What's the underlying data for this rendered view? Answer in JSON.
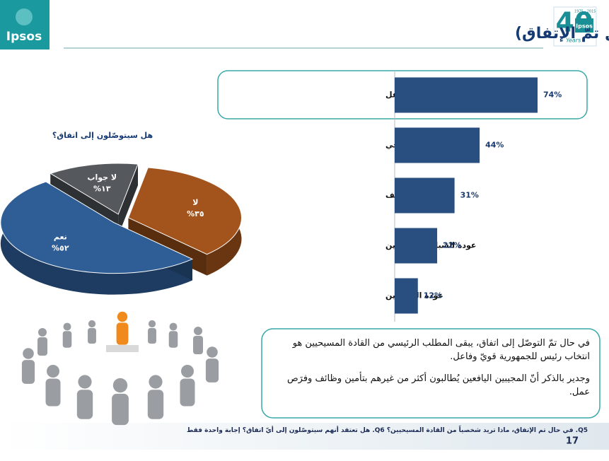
{
  "header": {
    "title": "المطالب من القادة المسيحيين (في حال تمّ الإتفاق)",
    "logo_left": "Ipsos",
    "logo_right": "Ipsos",
    "anniversary": "Years",
    "anniversary_years": "1975 - 2015"
  },
  "chart_data": [
    {
      "type": "pie",
      "title": "هل سيتوصّلون إلى اتفاق؟",
      "categories": [
        "لا",
        "نعم",
        "لا جواب"
      ],
      "values": [
        35,
        52,
        13
      ],
      "value_labels": [
        "٣٥%",
        "٥٢%",
        "١٣%"
      ],
      "colors": [
        "#a3541d",
        "#2f5d95",
        "#55595d"
      ]
    },
    {
      "type": "hbar",
      "categories": [
        "انتخاب رئيس للجمهورية قويّ وفاعل",
        "تفعيل الحوار المسيحي",
        "تأمين الوظائف",
        "عودة الشباب المهاجرين",
        "عودة المهجّرين"
      ],
      "values": [
        74,
        44,
        31,
        22,
        12
      ],
      "value_labels": [
        "74%",
        "44%",
        "31%",
        "22%",
        "12%"
      ],
      "color": "#284f80"
    }
  ],
  "note": {
    "paragraphs": [
      "في حال تمّ التوصّل إلى اتفاق، يبقى المطلب الرئيسي من القادة المسيحيين هو انتخاب رئيس للجمهورية قويّ وفاعل.",
      "وجدير بالذكر أنّ المجيبين اليافعين يُطالبون أكثر من غيرهم  بتأمين وظائف وفرَص عمل."
    ]
  },
  "footer": {
    "question": "Q5. في حال تم الإتفاق، ماذا تريد شخصياً من القادة المسيحيين؟ Q6. هل تعتقد أنهم سيتوصّلون إلى أيّ اتفاق؟ إجابة واحدة فقط",
    "page": 17
  }
}
